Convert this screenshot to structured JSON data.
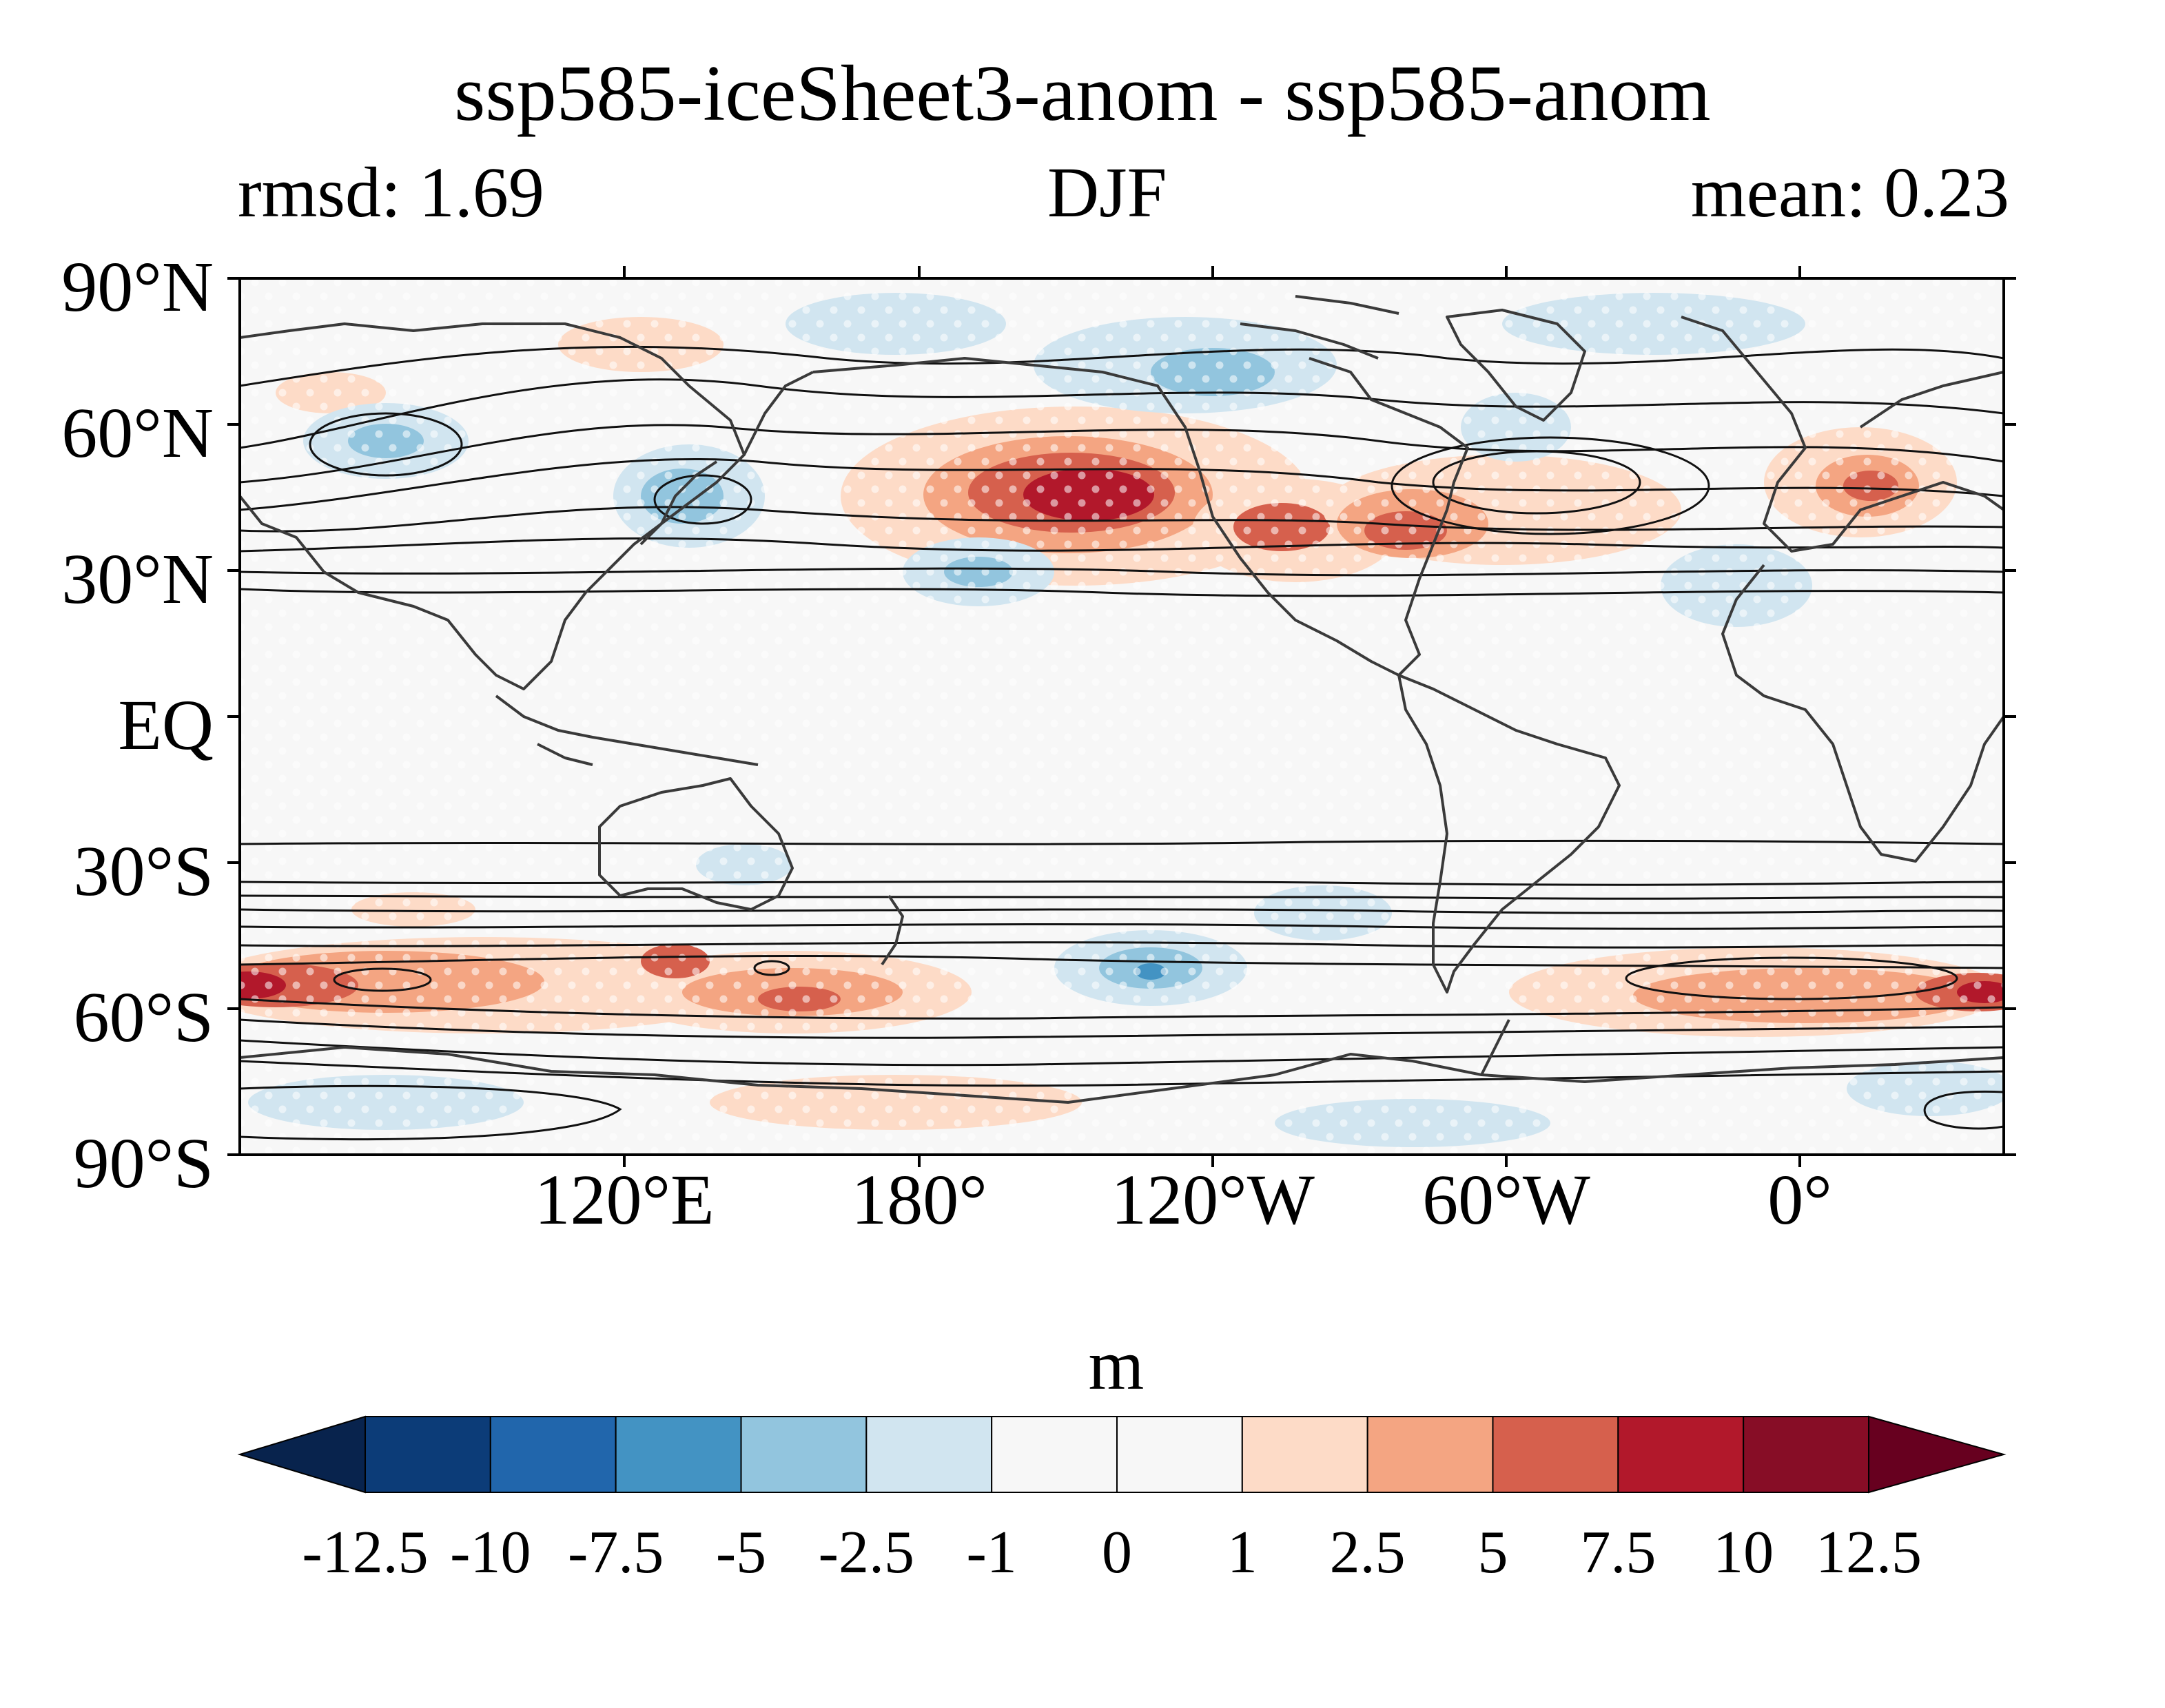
{
  "title": "ssp585-iceSheet3-anom - ssp585-anom",
  "left_subtitle": "rmsd: 1.69",
  "center_subtitle": "DJF",
  "right_subtitle": "mean: 0.23",
  "colorbar": {
    "units": "m",
    "levels": [
      "-12.5",
      "-10",
      "-7.5",
      "-5",
      "-2.5",
      "-1",
      "0",
      "1",
      "2.5",
      "5",
      "7.5",
      "10",
      "12.5"
    ],
    "colors": [
      "#08234d",
      "#0c3c78",
      "#2166ac",
      "#4393c3",
      "#92c5de",
      "#d1e5f0",
      "#f7f7f7",
      "#f7f7f7",
      "#fddbc7",
      "#f4a582",
      "#d6604d",
      "#b2182b",
      "#870d26",
      "#67001f"
    ]
  },
  "map": {
    "y_ticks": [
      "90°N",
      "60°N",
      "30°N",
      "EQ",
      "30°S",
      "60°S",
      "90°S"
    ],
    "x_ticks": [
      "120°E",
      "180°",
      "120°W",
      "60°W",
      "0°"
    ],
    "anomaly_features": [
      {
        "lon": -150,
        "lat": 45,
        "value": 11,
        "sign": "positive"
      },
      {
        "lon": -90,
        "lat": 38,
        "value": 6,
        "sign": "positive"
      },
      {
        "lon": -60,
        "lat": 45,
        "value": 4,
        "sign": "positive"
      },
      {
        "lon": 5,
        "lat": 48,
        "value": 6,
        "sign": "positive"
      },
      {
        "lon": 40,
        "lat": -53,
        "value": 11,
        "sign": "positive"
      },
      {
        "lon": 80,
        "lat": -52,
        "value": 5,
        "sign": "positive"
      },
      {
        "lon": 140,
        "lat": -50,
        "value": 5,
        "sign": "positive"
      },
      {
        "lon": -30,
        "lat": -55,
        "value": 5,
        "sign": "positive"
      },
      {
        "lon": 20,
        "lat": -55,
        "value": 6,
        "sign": "positive"
      },
      {
        "lon": -150,
        "lat": -75,
        "value": 3,
        "sign": "positive"
      },
      {
        "lon": -120,
        "lat": -50,
        "value": -4,
        "sign": "negative"
      },
      {
        "lon": -110,
        "lat": 80,
        "value": -3,
        "sign": "negative"
      },
      {
        "lon": 75,
        "lat": 55,
        "value": -3,
        "sign": "negative"
      },
      {
        "lon": 135,
        "lat": 45,
        "value": -3,
        "sign": "negative"
      },
      {
        "lon": -160,
        "lat": 30,
        "value": -2,
        "sign": "negative"
      },
      {
        "lon": -15,
        "lat": 30,
        "value": -2,
        "sign": "negative"
      },
      {
        "lon": -90,
        "lat": -40,
        "value": -2,
        "sign": "negative"
      }
    ]
  }
}
